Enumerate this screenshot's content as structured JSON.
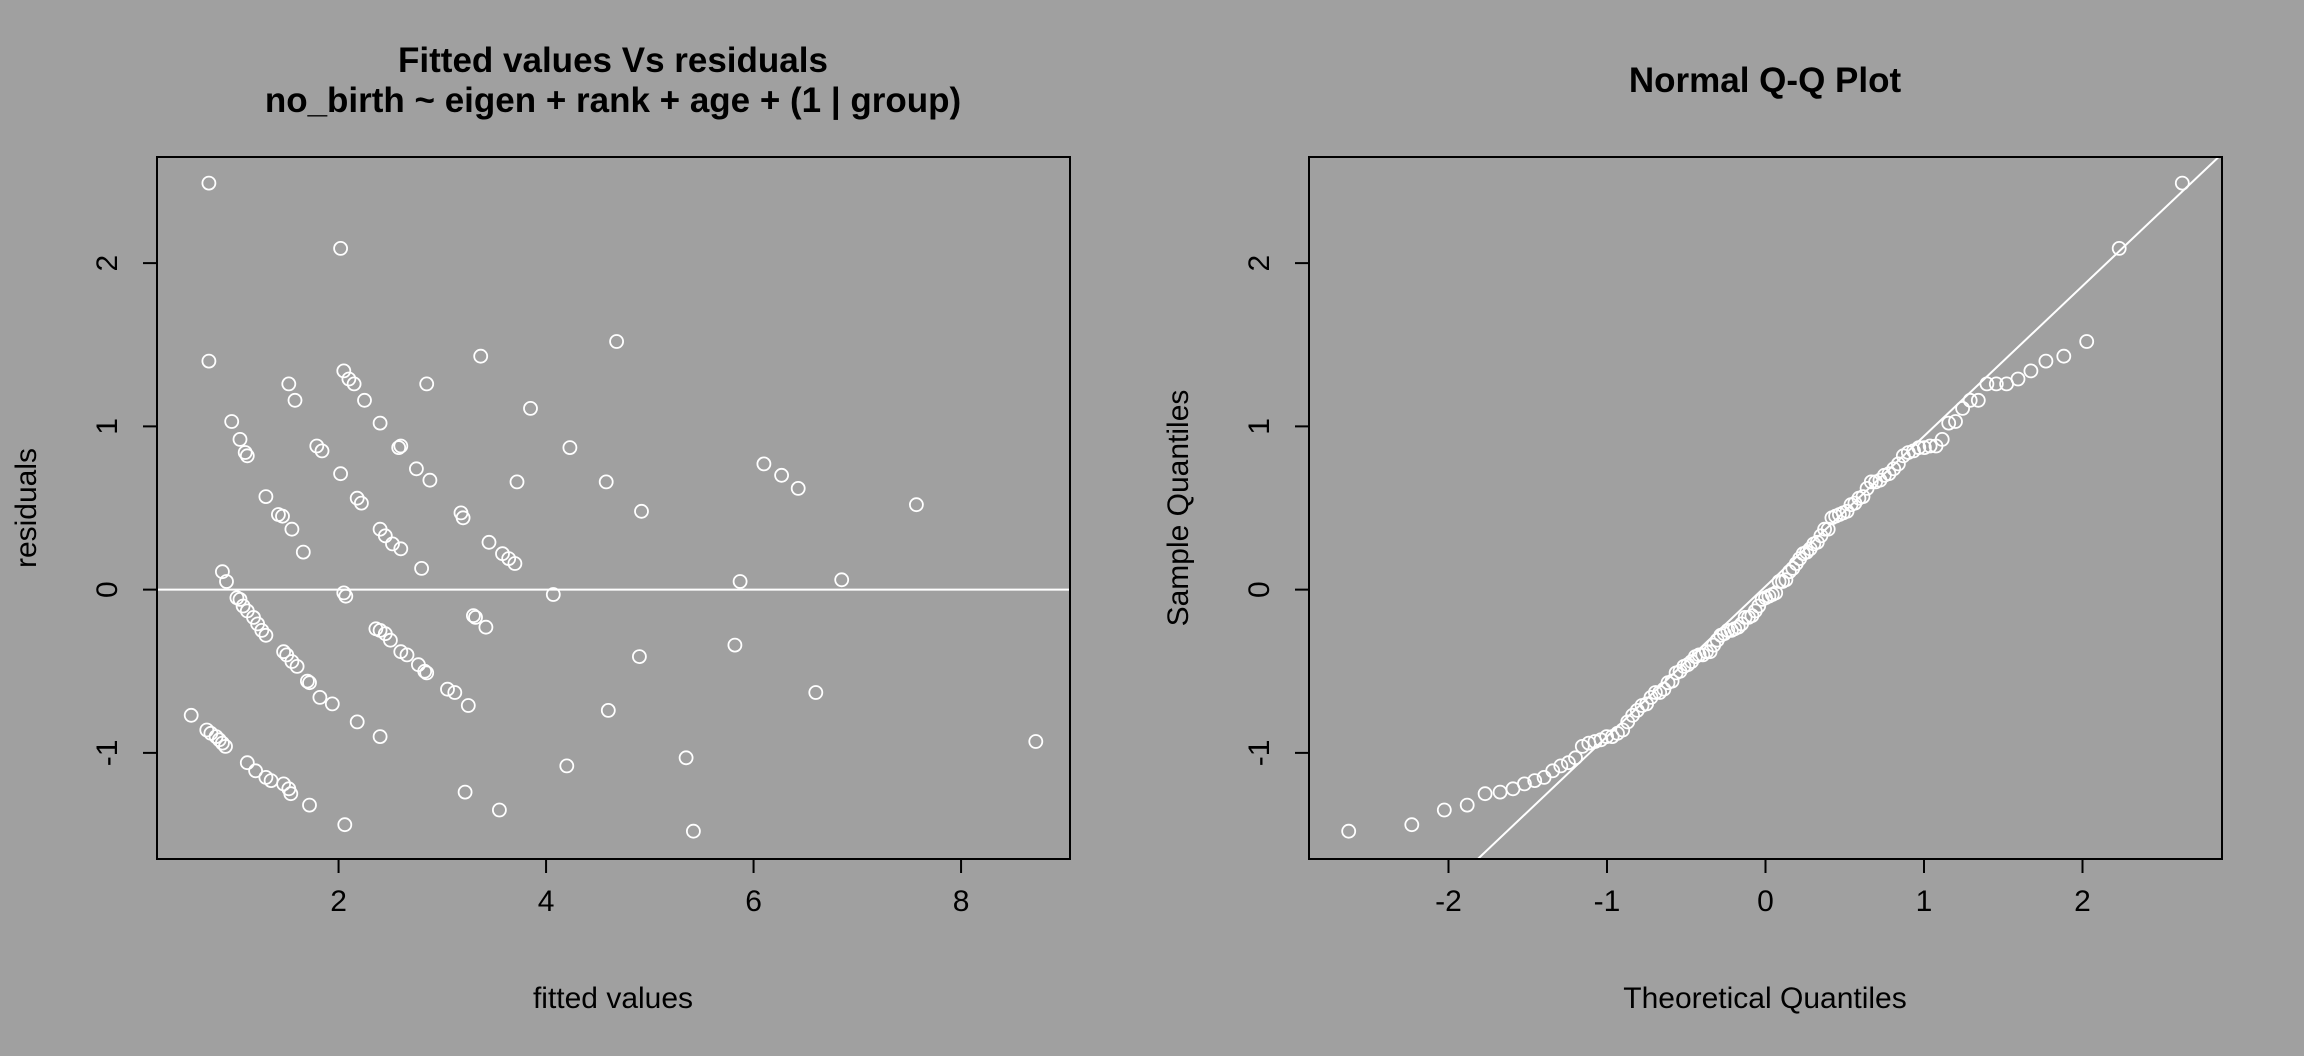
{
  "colors": {
    "background": "#a0a0a0",
    "points": "#ffffff",
    "reference_line": "#ffffff",
    "frame": "#000000",
    "text": "#000000"
  },
  "chart_data": [
    {
      "type": "scatter",
      "title": "Fitted values Vs residuals",
      "subtitle": "no_birth ~ eigen + rank + age + (1 | group)",
      "xlabel": "fitted values",
      "ylabel": "residuals",
      "xlim": [
        0.25,
        9.05
      ],
      "ylim": [
        -1.65,
        2.65
      ],
      "xticks": [
        2,
        4,
        6,
        8
      ],
      "yticks": [
        -1,
        0,
        1,
        2
      ],
      "grid": false,
      "reference_line": {
        "type": "horizontal",
        "y": 0
      },
      "point_style": "open-circle",
      "x": [
        0.75,
        0.75,
        0.97,
        1.05,
        1.1,
        1.12,
        0.88,
        0.92,
        1.02,
        1.05,
        1.08,
        1.12,
        1.18,
        1.22,
        1.26,
        1.3,
        0.58,
        0.73,
        0.77,
        0.82,
        0.85,
        0.88,
        0.91,
        1.12,
        1.2,
        1.3,
        1.35,
        1.47,
        1.52,
        1.54,
        1.3,
        1.42,
        1.46,
        1.55,
        1.66,
        1.79,
        1.84,
        1.47,
        1.5,
        1.55,
        1.6,
        1.7,
        1.72,
        1.82,
        1.94,
        2.18,
        2.4,
        1.52,
        1.58,
        1.72,
        2.05,
        2.1,
        2.15,
        2.25,
        2.4,
        2.58,
        2.6,
        2.75,
        2.88,
        2.02,
        2.05,
        2.07,
        2.18,
        2.22,
        2.4,
        2.45,
        2.52,
        2.6,
        2.8,
        2.36,
        2.4,
        2.45,
        2.5,
        2.6,
        2.66,
        2.77,
        2.83,
        2.85,
        3.05,
        3.12,
        3.25,
        2.85,
        3.18,
        3.2,
        3.45,
        3.58,
        3.64,
        3.7,
        3.3,
        3.32,
        3.42,
        3.72,
        3.85,
        4.07,
        4.23,
        3.37,
        3.22,
        3.55,
        4.2,
        4.58,
        4.6,
        4.68,
        4.92,
        4.9,
        5.35,
        5.42,
        5.82,
        5.87,
        6.1,
        6.27,
        6.43,
        6.6,
        6.85,
        7.57,
        8.72,
        2.02,
        2.06
      ],
      "y": [
        2.49,
        1.4,
        1.03,
        0.92,
        0.84,
        0.82,
        0.11,
        0.05,
        -0.05,
        -0.06,
        -0.1,
        -0.13,
        -0.17,
        -0.21,
        -0.25,
        -0.28,
        -0.77,
        -0.86,
        -0.88,
        -0.9,
        -0.92,
        -0.94,
        -0.96,
        -1.06,
        -1.11,
        -1.15,
        -1.17,
        -1.19,
        -1.22,
        -1.25,
        0.57,
        0.46,
        0.45,
        0.37,
        0.23,
        0.88,
        0.85,
        -0.38,
        -0.4,
        -0.44,
        -0.47,
        -0.56,
        -0.57,
        -0.66,
        -0.7,
        -0.81,
        -0.9,
        1.26,
        1.16,
        -1.32,
        1.34,
        1.29,
        1.26,
        1.16,
        1.02,
        0.87,
        0.88,
        0.74,
        0.67,
        0.71,
        -0.02,
        -0.04,
        0.56,
        0.53,
        0.37,
        0.33,
        0.28,
        0.25,
        0.13,
        -0.24,
        -0.25,
        -0.27,
        -0.31,
        -0.38,
        -0.4,
        -0.46,
        -0.5,
        -0.51,
        -0.61,
        -0.63,
        -0.71,
        1.26,
        0.47,
        0.44,
        0.29,
        0.22,
        0.19,
        0.16,
        -0.16,
        -0.17,
        -0.23,
        0.66,
        1.11,
        -0.03,
        0.87,
        1.43,
        -1.24,
        -1.35,
        -1.08,
        0.66,
        -0.74,
        1.52,
        0.48,
        -0.41,
        -1.03,
        -1.48,
        -0.34,
        0.05,
        0.77,
        0.7,
        0.62,
        -0.63,
        0.06,
        0.52,
        -0.93,
        2.09,
        -1.44
      ]
    },
    {
      "type": "scatter",
      "title": "Normal Q-Q Plot",
      "xlabel": "Theoretical Quantiles",
      "ylabel": "Sample Quantiles",
      "xlim": [
        -2.88,
        2.88
      ],
      "ylim": [
        -1.65,
        2.65
      ],
      "xticks": [
        -2,
        -1,
        0,
        1,
        2
      ],
      "yticks": [
        -1,
        0,
        1,
        2
      ],
      "grid": false,
      "point_style": "open-circle",
      "reference_line": {
        "type": "qq-line",
        "intercept": 0.02,
        "slope": 0.92
      }
    }
  ]
}
